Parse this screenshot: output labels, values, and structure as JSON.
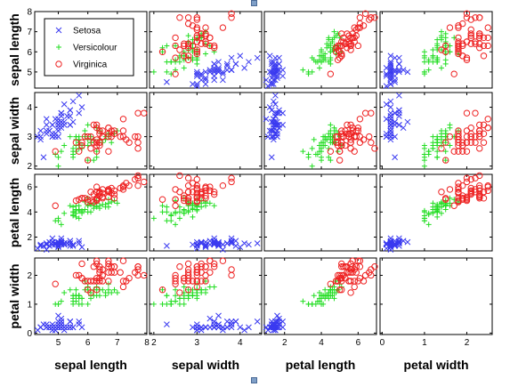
{
  "window": {
    "top_handle": "handle",
    "bottom_handle": "handle"
  },
  "chart_data": {
    "type": "scatter-matrix",
    "variables": [
      "sepal length",
      "sepal width",
      "petal length",
      "petal width"
    ],
    "ranges": [
      [
        4.2,
        8.0
      ],
      [
        1.9,
        4.5
      ],
      [
        0.9,
        7.0
      ],
      [
        -0.05,
        2.6
      ]
    ],
    "ticks": [
      [
        5,
        6,
        7,
        8
      ],
      [
        2,
        3,
        4
      ],
      [
        2,
        4,
        6
      ],
      [
        0,
        1,
        2
      ]
    ],
    "ytick_labels_row0": [
      5,
      6,
      7,
      8
    ],
    "xtick_labels_col1": [
      2,
      3,
      4
    ],
    "xtick_labels_col3": [
      0,
      1,
      2
    ],
    "legend": {
      "placement": "top-left of first panel",
      "entries": [
        {
          "name": "Setosa",
          "marker": "x",
          "color": "#3a3af0"
        },
        {
          "name": "Versicolour",
          "marker": "+",
          "color": "#22dd22"
        },
        {
          "name": "Virginica",
          "marker": "o",
          "color": "#ee2222"
        }
      ]
    },
    "diagonal": "empty",
    "series": [
      {
        "name": "Setosa",
        "color": "#3a3af0",
        "marker": "x",
        "points": [
          [
            5.1,
            3.5,
            1.4,
            0.2
          ],
          [
            4.9,
            3.0,
            1.4,
            0.2
          ],
          [
            4.7,
            3.2,
            1.3,
            0.2
          ],
          [
            4.6,
            3.1,
            1.5,
            0.2
          ],
          [
            5.0,
            3.6,
            1.4,
            0.2
          ],
          [
            5.4,
            3.9,
            1.7,
            0.4
          ],
          [
            4.6,
            3.4,
            1.4,
            0.3
          ],
          [
            5.0,
            3.4,
            1.5,
            0.2
          ],
          [
            4.4,
            2.9,
            1.4,
            0.2
          ],
          [
            4.9,
            3.1,
            1.5,
            0.1
          ],
          [
            5.4,
            3.7,
            1.5,
            0.2
          ],
          [
            4.8,
            3.4,
            1.6,
            0.2
          ],
          [
            4.8,
            3.0,
            1.4,
            0.1
          ],
          [
            4.3,
            3.0,
            1.1,
            0.1
          ],
          [
            5.8,
            4.0,
            1.2,
            0.2
          ],
          [
            5.7,
            4.4,
            1.5,
            0.4
          ],
          [
            5.4,
            3.9,
            1.3,
            0.4
          ],
          [
            5.1,
            3.5,
            1.4,
            0.3
          ],
          [
            5.7,
            3.8,
            1.7,
            0.3
          ],
          [
            5.1,
            3.8,
            1.5,
            0.3
          ],
          [
            5.4,
            3.4,
            1.7,
            0.2
          ],
          [
            5.1,
            3.7,
            1.5,
            0.4
          ],
          [
            4.6,
            3.6,
            1.0,
            0.2
          ],
          [
            5.1,
            3.3,
            1.7,
            0.5
          ],
          [
            4.8,
            3.4,
            1.9,
            0.2
          ],
          [
            5.0,
            3.0,
            1.6,
            0.2
          ],
          [
            5.0,
            3.4,
            1.6,
            0.4
          ],
          [
            5.2,
            3.5,
            1.5,
            0.2
          ],
          [
            5.2,
            3.4,
            1.4,
            0.2
          ],
          [
            4.7,
            3.2,
            1.6,
            0.2
          ],
          [
            4.8,
            3.1,
            1.6,
            0.2
          ],
          [
            5.4,
            3.4,
            1.5,
            0.4
          ],
          [
            5.2,
            4.1,
            1.5,
            0.1
          ],
          [
            5.5,
            4.2,
            1.4,
            0.2
          ],
          [
            4.9,
            3.1,
            1.5,
            0.2
          ],
          [
            5.0,
            3.2,
            1.2,
            0.2
          ],
          [
            5.5,
            3.5,
            1.3,
            0.2
          ],
          [
            4.9,
            3.6,
            1.4,
            0.1
          ],
          [
            4.4,
            3.0,
            1.3,
            0.2
          ],
          [
            5.1,
            3.4,
            1.5,
            0.2
          ],
          [
            5.0,
            3.5,
            1.3,
            0.3
          ],
          [
            4.5,
            2.3,
            1.3,
            0.3
          ],
          [
            4.4,
            3.2,
            1.3,
            0.2
          ],
          [
            5.0,
            3.5,
            1.6,
            0.6
          ],
          [
            5.1,
            3.8,
            1.9,
            0.4
          ],
          [
            4.8,
            3.0,
            1.4,
            0.3
          ],
          [
            5.1,
            3.8,
            1.6,
            0.2
          ],
          [
            4.6,
            3.2,
            1.4,
            0.2
          ],
          [
            5.3,
            3.7,
            1.5,
            0.2
          ],
          [
            5.0,
            3.3,
            1.4,
            0.2
          ]
        ]
      },
      {
        "name": "Versicolour",
        "color": "#22dd22",
        "marker": "+",
        "points": [
          [
            7.0,
            3.2,
            4.7,
            1.4
          ],
          [
            6.4,
            3.2,
            4.5,
            1.5
          ],
          [
            6.9,
            3.1,
            4.9,
            1.5
          ],
          [
            5.5,
            2.3,
            4.0,
            1.3
          ],
          [
            6.5,
            2.8,
            4.6,
            1.5
          ],
          [
            5.7,
            2.8,
            4.5,
            1.3
          ],
          [
            6.3,
            3.3,
            4.7,
            1.6
          ],
          [
            4.9,
            2.4,
            3.3,
            1.0
          ],
          [
            6.6,
            2.9,
            4.6,
            1.3
          ],
          [
            5.2,
            2.7,
            3.9,
            1.4
          ],
          [
            5.0,
            2.0,
            3.5,
            1.0
          ],
          [
            5.9,
            3.0,
            4.2,
            1.5
          ],
          [
            6.0,
            2.2,
            4.0,
            1.0
          ],
          [
            6.1,
            2.9,
            4.7,
            1.4
          ],
          [
            5.6,
            2.9,
            3.6,
            1.3
          ],
          [
            6.7,
            3.1,
            4.4,
            1.4
          ],
          [
            5.6,
            3.0,
            4.5,
            1.5
          ],
          [
            5.8,
            2.7,
            4.1,
            1.0
          ],
          [
            6.2,
            2.2,
            4.5,
            1.5
          ],
          [
            5.6,
            2.5,
            3.9,
            1.1
          ],
          [
            5.9,
            3.2,
            4.8,
            1.8
          ],
          [
            6.1,
            2.8,
            4.0,
            1.3
          ],
          [
            6.3,
            2.5,
            4.9,
            1.5
          ],
          [
            6.1,
            2.8,
            4.7,
            1.2
          ],
          [
            6.4,
            2.9,
            4.3,
            1.3
          ],
          [
            6.6,
            3.0,
            4.4,
            1.4
          ],
          [
            6.8,
            2.8,
            4.8,
            1.4
          ],
          [
            6.7,
            3.0,
            5.0,
            1.7
          ],
          [
            6.0,
            2.9,
            4.5,
            1.5
          ],
          [
            5.7,
            2.6,
            3.5,
            1.0
          ],
          [
            5.5,
            2.4,
            3.8,
            1.1
          ],
          [
            5.5,
            2.4,
            3.7,
            1.0
          ],
          [
            5.8,
            2.7,
            3.9,
            1.2
          ],
          [
            6.0,
            2.7,
            5.1,
            1.6
          ],
          [
            5.4,
            3.0,
            4.5,
            1.5
          ],
          [
            6.0,
            3.4,
            4.5,
            1.6
          ],
          [
            6.7,
            3.1,
            4.7,
            1.5
          ],
          [
            6.3,
            2.3,
            4.4,
            1.3
          ],
          [
            5.6,
            3.0,
            4.1,
            1.3
          ],
          [
            5.5,
            2.5,
            4.0,
            1.3
          ],
          [
            5.5,
            2.6,
            4.4,
            1.2
          ],
          [
            6.1,
            3.0,
            4.6,
            1.4
          ],
          [
            5.8,
            2.6,
            4.0,
            1.2
          ],
          [
            5.0,
            2.3,
            3.3,
            1.0
          ],
          [
            5.6,
            2.7,
            4.2,
            1.3
          ],
          [
            5.7,
            3.0,
            4.2,
            1.2
          ],
          [
            5.7,
            2.9,
            4.2,
            1.3
          ],
          [
            6.2,
            2.9,
            4.3,
            1.3
          ],
          [
            5.1,
            2.5,
            3.0,
            1.1
          ],
          [
            5.7,
            2.8,
            4.1,
            1.3
          ]
        ]
      },
      {
        "name": "Virginica",
        "color": "#ee2222",
        "marker": "o",
        "points": [
          [
            6.3,
            3.3,
            6.0,
            2.5
          ],
          [
            5.8,
            2.7,
            5.1,
            1.9
          ],
          [
            7.1,
            3.0,
            5.9,
            2.1
          ],
          [
            6.3,
            2.9,
            5.6,
            1.8
          ],
          [
            6.5,
            3.0,
            5.8,
            2.2
          ],
          [
            7.6,
            3.0,
            6.6,
            2.1
          ],
          [
            4.9,
            2.5,
            4.5,
            1.7
          ],
          [
            7.3,
            2.9,
            6.3,
            1.8
          ],
          [
            6.7,
            2.5,
            5.8,
            1.8
          ],
          [
            7.2,
            3.6,
            6.1,
            2.5
          ],
          [
            6.5,
            3.2,
            5.1,
            2.0
          ],
          [
            6.4,
            2.7,
            5.3,
            1.9
          ],
          [
            6.8,
            3.0,
            5.5,
            2.1
          ],
          [
            5.7,
            2.5,
            5.0,
            2.0
          ],
          [
            5.8,
            2.8,
            5.1,
            2.4
          ],
          [
            6.4,
            3.2,
            5.3,
            2.3
          ],
          [
            6.5,
            3.0,
            5.5,
            1.8
          ],
          [
            7.7,
            3.8,
            6.7,
            2.2
          ],
          [
            7.7,
            2.6,
            6.9,
            2.3
          ],
          [
            6.0,
            2.2,
            5.0,
            1.5
          ],
          [
            6.9,
            3.2,
            5.7,
            2.3
          ],
          [
            5.6,
            2.8,
            4.9,
            2.0
          ],
          [
            7.7,
            2.8,
            6.7,
            2.0
          ],
          [
            6.3,
            2.7,
            4.9,
            1.8
          ],
          [
            6.7,
            3.3,
            5.7,
            2.1
          ],
          [
            7.2,
            3.2,
            6.0,
            1.8
          ],
          [
            6.2,
            2.8,
            4.8,
            1.8
          ],
          [
            6.1,
            3.0,
            4.9,
            1.8
          ],
          [
            6.4,
            2.8,
            5.6,
            2.1
          ],
          [
            7.2,
            3.0,
            5.8,
            1.6
          ],
          [
            7.4,
            2.8,
            6.1,
            1.9
          ],
          [
            7.9,
            3.8,
            6.4,
            2.0
          ],
          [
            6.4,
            2.8,
            5.6,
            2.2
          ],
          [
            6.3,
            2.8,
            5.1,
            1.5
          ],
          [
            6.1,
            2.6,
            5.6,
            1.4
          ],
          [
            7.7,
            3.0,
            6.1,
            2.3
          ],
          [
            6.3,
            3.4,
            5.6,
            2.4
          ],
          [
            6.4,
            3.1,
            5.5,
            1.8
          ],
          [
            6.0,
            3.0,
            4.8,
            1.8
          ],
          [
            6.9,
            3.1,
            5.4,
            2.1
          ],
          [
            6.7,
            3.1,
            5.6,
            2.4
          ],
          [
            6.9,
            3.1,
            5.1,
            2.3
          ],
          [
            5.8,
            2.7,
            5.1,
            1.9
          ],
          [
            6.8,
            3.2,
            5.9,
            2.3
          ],
          [
            6.7,
            3.3,
            5.7,
            2.5
          ],
          [
            6.7,
            3.0,
            5.2,
            2.3
          ],
          [
            6.3,
            2.5,
            5.0,
            1.9
          ],
          [
            6.5,
            3.0,
            5.2,
            2.0
          ],
          [
            6.2,
            3.4,
            5.4,
            2.3
          ],
          [
            5.9,
            3.0,
            5.1,
            1.8
          ]
        ]
      }
    ]
  }
}
